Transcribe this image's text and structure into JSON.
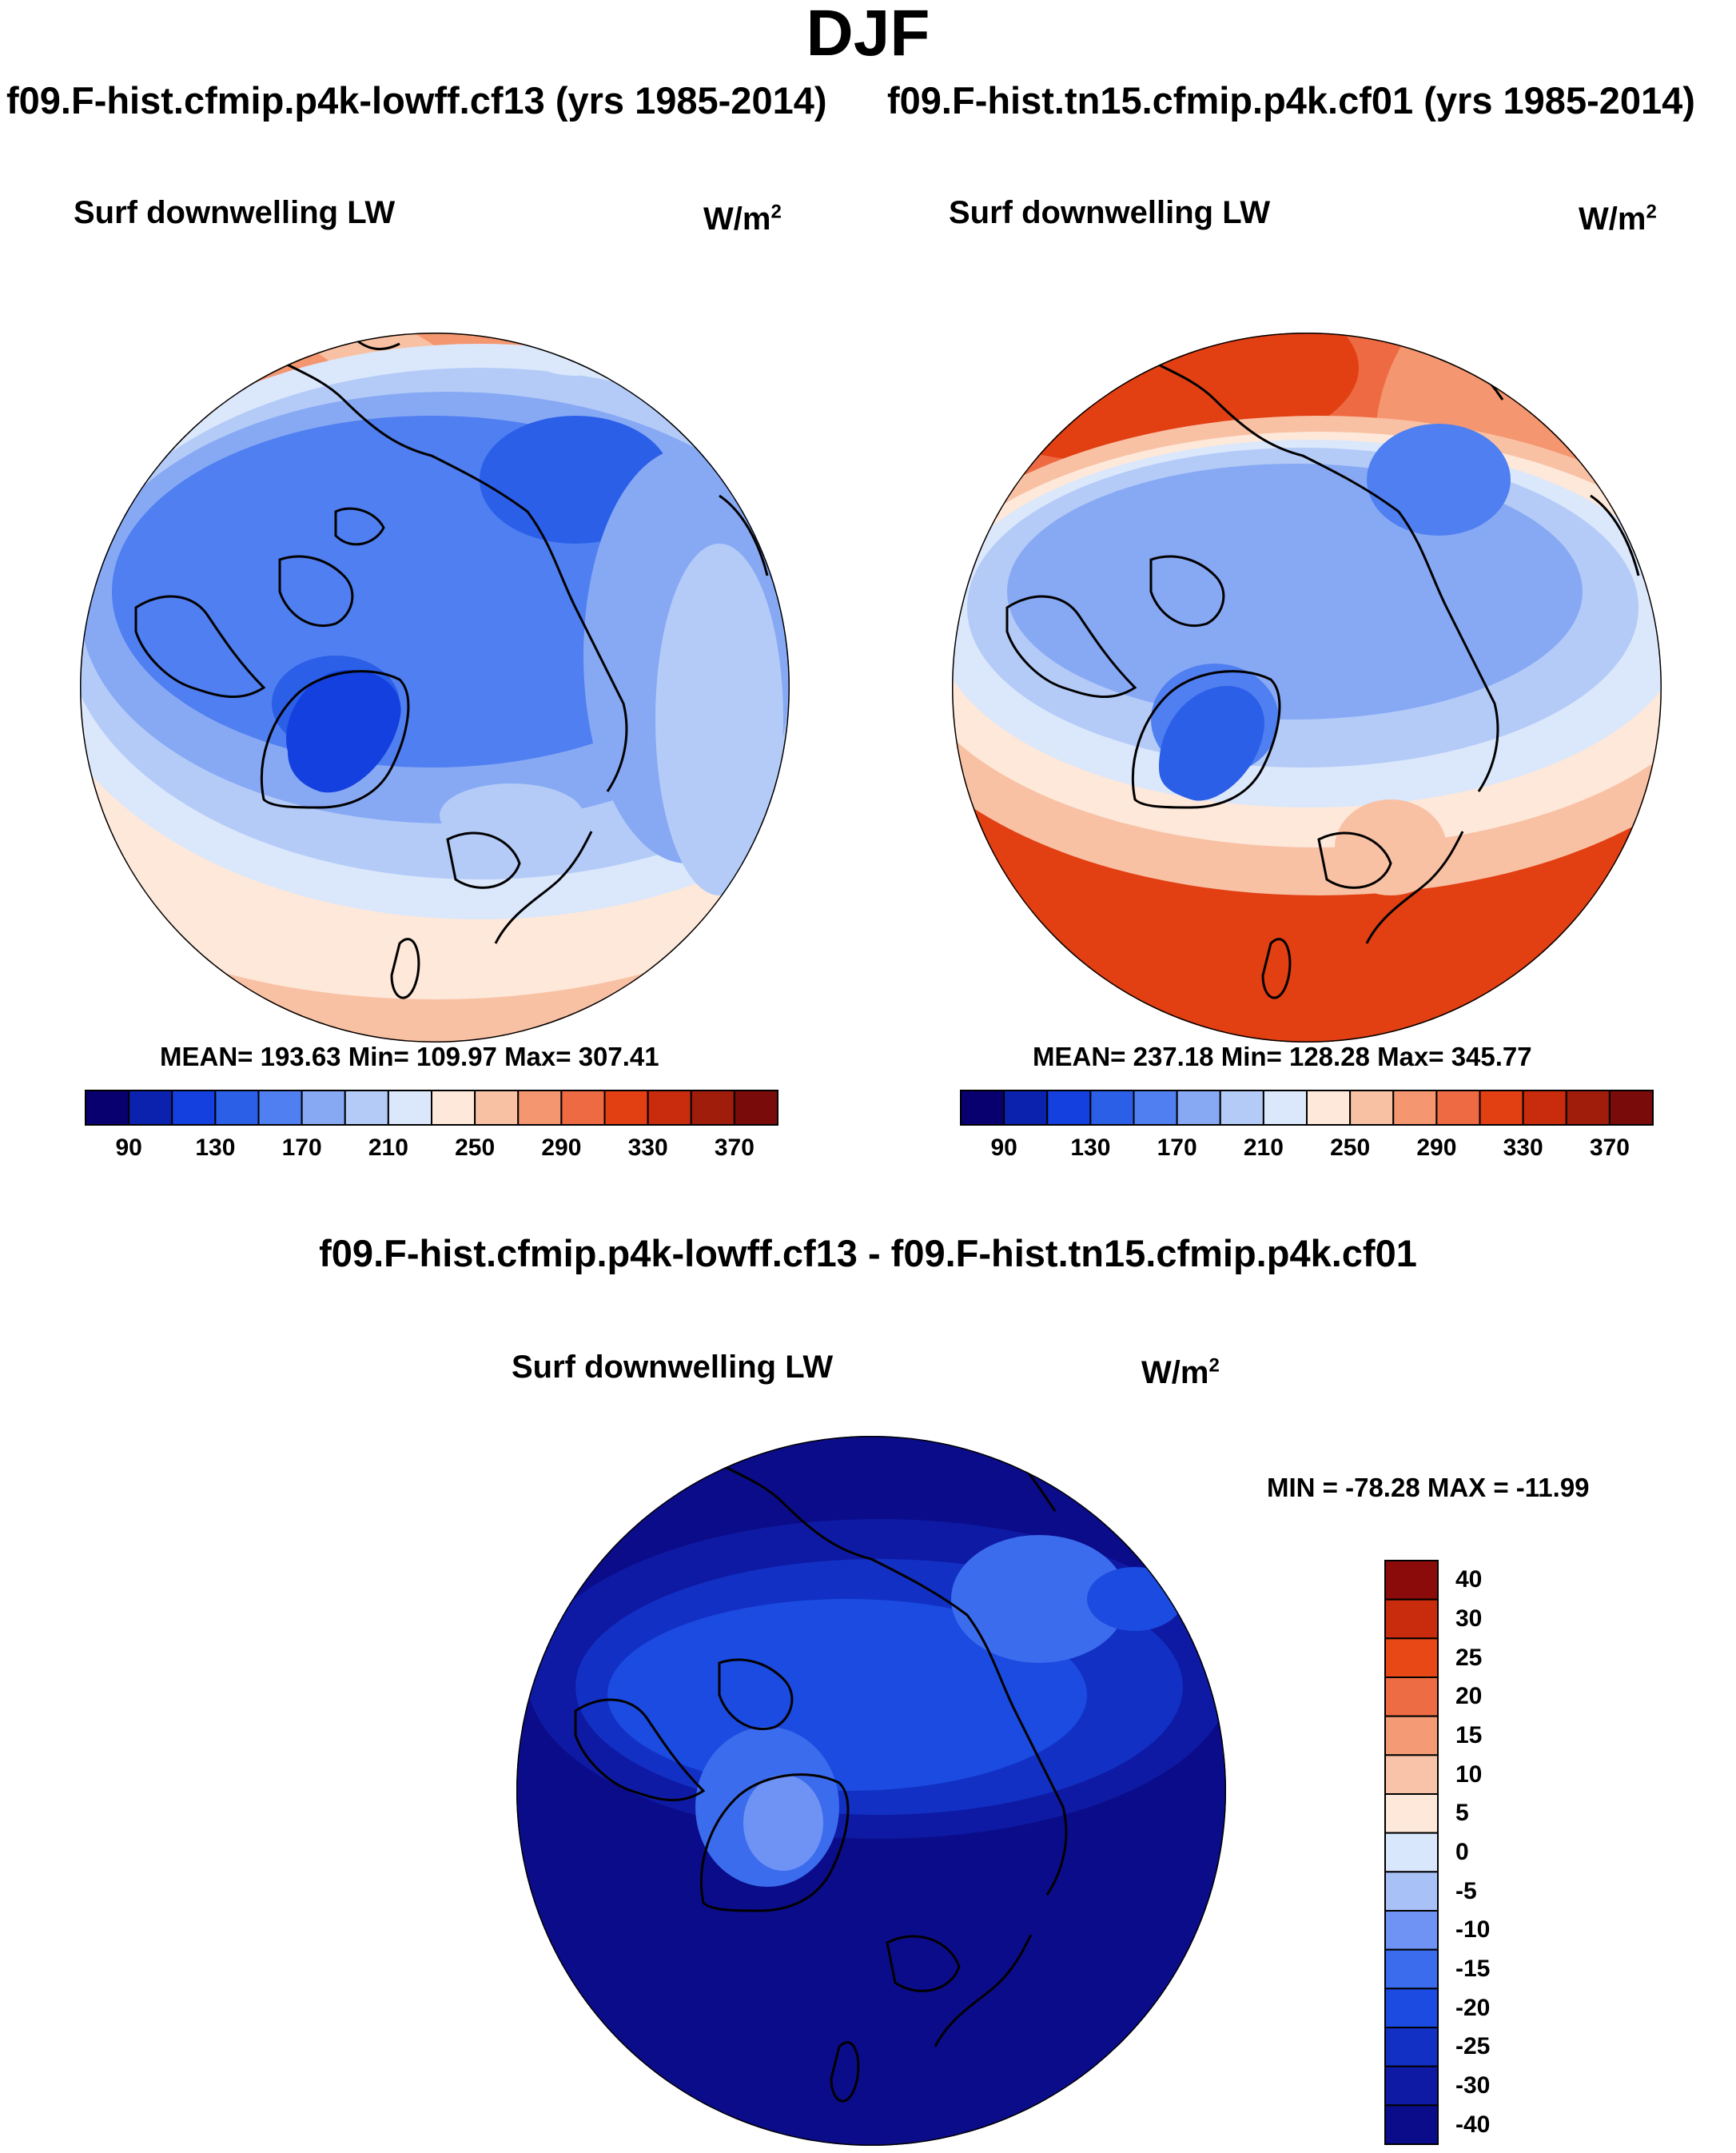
{
  "main_title": "DJF",
  "colors": {
    "abs_levels": [
      "#08006e",
      "#0a22ad",
      "#1340de",
      "#2b5fe8",
      "#4f7ff0",
      "#87a9f4",
      "#b4cbf8",
      "#dbe7fb",
      "#fde8da",
      "#f9c1a4",
      "#f4966f",
      "#ee6a42",
      "#e23f13",
      "#c82c0c",
      "#a01d0c",
      "#7a0b0b"
    ],
    "diff_levels": [
      "#0b0c8a",
      "#0e1aa3",
      "#1230c4",
      "#1b4be0",
      "#3b6ced",
      "#6e93f4",
      "#a8c2f8",
      "#d8e7fc",
      "#fde8da",
      "#f8c3a8",
      "#f49b76",
      "#ee6c43",
      "#e84716",
      "#c82c0c",
      "#8b0b0b"
    ],
    "coast": "#000000"
  },
  "chart_data": [
    {
      "type": "heatmap",
      "projection": "north-polar-stereographic",
      "title": "f09.F-hist.cfmip.p4k-lowff.cf13 (yrs 1985-2014)",
      "variable": "Surf downwelling LW",
      "units_base": "W/m",
      "units_exp": "2",
      "stats": "MEAN= 193.63  Min= 109.97  Max= 307.41",
      "mean": 193.63,
      "min": 109.97,
      "max": 307.41,
      "colorbar_ticks": [
        "90",
        "130",
        "170",
        "210",
        "250",
        "290",
        "330",
        "370"
      ],
      "levels": [
        70,
        90,
        110,
        130,
        150,
        170,
        190,
        210,
        230,
        250,
        270,
        290,
        310,
        330,
        350,
        370,
        390
      ]
    },
    {
      "type": "heatmap",
      "projection": "north-polar-stereographic",
      "title": "f09.F-hist.tn15.cfmip.p4k.cf01 (yrs 1985-2014)",
      "variable": "Surf downwelling LW",
      "units_base": "W/m",
      "units_exp": "2",
      "stats": "MEAN= 237.18  Min= 128.28  Max= 345.77",
      "mean": 237.18,
      "min": 128.28,
      "max": 345.77,
      "colorbar_ticks": [
        "90",
        "130",
        "170",
        "210",
        "250",
        "290",
        "330",
        "370"
      ],
      "levels": [
        70,
        90,
        110,
        130,
        150,
        170,
        190,
        210,
        230,
        250,
        270,
        290,
        310,
        330,
        350,
        370,
        390
      ]
    },
    {
      "type": "heatmap",
      "projection": "north-polar-stereographic",
      "title": "f09.F-hist.cfmip.p4k-lowff.cf13 - f09.F-hist.tn15.cfmip.p4k.cf01",
      "variable": "Surf downwelling LW",
      "units_base": "W/m",
      "units_exp": "2",
      "stats": "MIN = -78.28 MAX = -11.99",
      "min": -78.28,
      "max": -11.99,
      "colorbar_ticks": [
        "40",
        "30",
        "25",
        "20",
        "15",
        "10",
        "5",
        "0",
        "-5",
        "-10",
        "-15",
        "-20",
        "-25",
        "-30",
        "-40"
      ],
      "levels": [
        -50,
        -40,
        -30,
        -25,
        -20,
        -15,
        -10,
        -5,
        0,
        5,
        10,
        15,
        20,
        25,
        30,
        40,
        50
      ]
    }
  ]
}
